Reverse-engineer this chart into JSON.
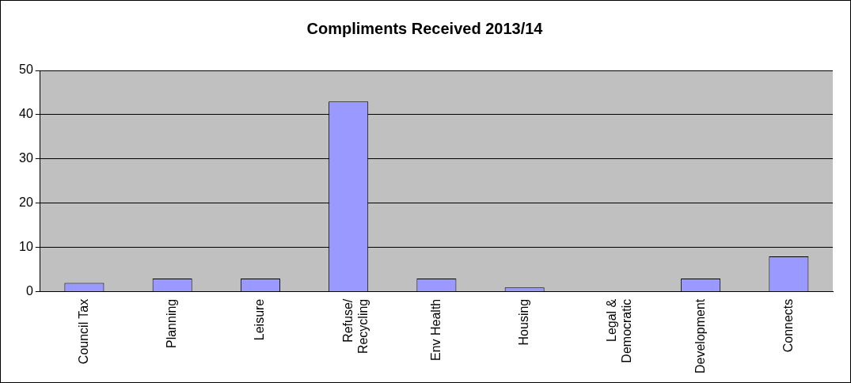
{
  "chart_data": {
    "type": "bar",
    "title": "Compliments Received 2013/14",
    "categories": [
      "Council Tax",
      "Planning",
      "Leisure",
      "Refuse/\nRecycling",
      "Env Health",
      "Housing",
      "Legal &\nDemocratic",
      "Development",
      "Connects"
    ],
    "values": [
      2,
      3,
      3,
      43,
      3,
      1,
      0,
      3,
      8
    ],
    "color": "#9999ff",
    "ylim": [
      0,
      50
    ],
    "yticks": [
      0,
      10,
      20,
      30,
      40,
      50
    ],
    "grid": "y",
    "legend": false
  }
}
